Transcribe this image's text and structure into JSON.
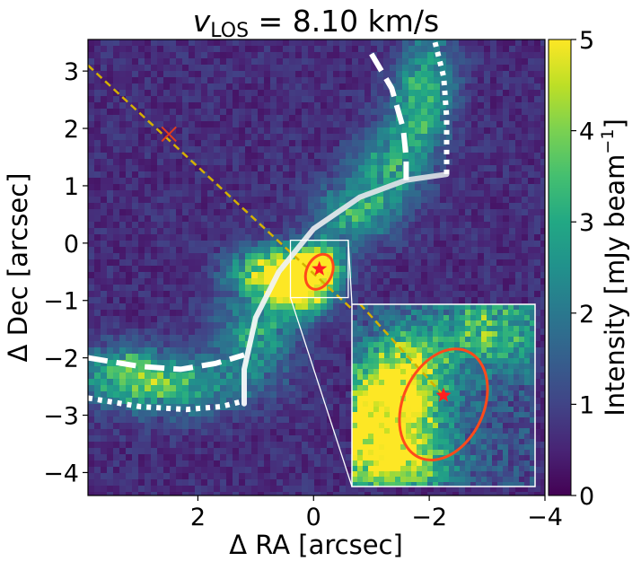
{
  "chart_data": {
    "type": "heatmap",
    "title": "v_LOS = 8.10 km/s",
    "title_parts": {
      "v": "v",
      "sub": "LOS",
      "rest": " = 8.10 km/s"
    },
    "xlabel": "Δ RA [arcsec]",
    "ylabel": "Δ Dec [arcsec]",
    "colorbar_label": "Intensity [mJy beam⁻¹]",
    "colorbar_label_parts": {
      "main": "Intensity [mJy beam",
      "sup": "−1",
      "close": "]"
    },
    "colormap": "viridis",
    "colormap_colors": [
      "#440154",
      "#3b528b",
      "#21918c",
      "#5ec962",
      "#fde725"
    ],
    "xlim": [
      3.9,
      -4.0
    ],
    "ylim": [
      -4.4,
      3.55
    ],
    "clim": [
      0,
      5
    ],
    "x_ticks": [
      2,
      0,
      -2,
      -4
    ],
    "x_tick_labels": [
      "2",
      "0",
      "−2",
      "−4"
    ],
    "y_ticks": [
      3,
      2,
      1,
      0,
      -1,
      -2,
      -3,
      -4
    ],
    "y_tick_labels": [
      "3",
      "2",
      "1",
      "0",
      "−1",
      "−2",
      "−3",
      "−4"
    ],
    "colorbar_ticks": [
      0,
      1,
      2,
      3,
      4,
      5
    ],
    "colorbar_tick_labels": [
      "0",
      "1",
      "2",
      "3",
      "4",
      "5"
    ],
    "emission_features": [
      {
        "x": 0.55,
        "y": -0.5,
        "value": 5.0,
        "sx": 0.55,
        "sy": 0.3
      },
      {
        "x": 0.2,
        "y": -0.8,
        "value": 4.5,
        "sx": 0.35,
        "sy": 0.3
      },
      {
        "x": -0.15,
        "y": -0.35,
        "value": 3.0,
        "sx": 0.25,
        "sy": 0.25
      },
      {
        "x": 1.0,
        "y": -1.6,
        "value": 2.2,
        "sx": 0.5,
        "sy": 0.5
      },
      {
        "x": 2.5,
        "y": -2.5,
        "value": 2.6,
        "sx": 0.9,
        "sy": 0.35
      },
      {
        "x": 3.3,
        "y": -2.2,
        "value": 2.2,
        "sx": 0.5,
        "sy": 0.3
      },
      {
        "x": -0.7,
        "y": 0.5,
        "value": 2.4,
        "sx": 0.5,
        "sy": 0.35
      },
      {
        "x": -1.3,
        "y": 1.3,
        "value": 2.2,
        "sx": 0.45,
        "sy": 0.45
      },
      {
        "x": -1.8,
        "y": 2.2,
        "value": 2.2,
        "sx": 0.35,
        "sy": 0.5
      },
      {
        "x": -2.0,
        "y": 3.0,
        "value": 2.0,
        "sx": 0.35,
        "sy": 0.5
      }
    ],
    "background_level": 0.7,
    "source_star": {
      "x": -0.1,
      "y": -0.45,
      "color": "#ff2020"
    },
    "red_contour_ellipse": {
      "cx": -0.1,
      "cy": -0.5,
      "rx": 0.22,
      "ry": 0.32,
      "angle_deg": 25,
      "color": "#ff4a1a"
    },
    "cross_marker": {
      "x": 2.5,
      "y": 1.9,
      "color": "#e03c1e"
    },
    "dashed_axis_line": {
      "color": "#d4b000",
      "points": [
        {
          "x": 3.9,
          "y": 3.1
        },
        {
          "x": -1.9,
          "y": -2.3
        }
      ]
    },
    "solid_arc": {
      "color": "#e8ecef",
      "points": [
        {
          "x": 1.2,
          "y": -2.8
        },
        {
          "x": 1.2,
          "y": -2.2
        },
        {
          "x": 1.0,
          "y": -1.3
        },
        {
          "x": 0.6,
          "y": -0.5
        },
        {
          "x": 0.0,
          "y": 0.25
        },
        {
          "x": -0.8,
          "y": 0.8
        },
        {
          "x": -1.6,
          "y": 1.1
        },
        {
          "x": -2.3,
          "y": 1.2
        }
      ]
    },
    "dashed_arc_lower": {
      "points": [
        {
          "x": 3.9,
          "y": -2.0
        },
        {
          "x": 3.0,
          "y": -2.15
        },
        {
          "x": 2.3,
          "y": -2.2
        },
        {
          "x": 1.7,
          "y": -2.1
        },
        {
          "x": 1.2,
          "y": -1.95
        }
      ]
    },
    "dotted_arc_lower": {
      "points": [
        {
          "x": 3.9,
          "y": -2.7
        },
        {
          "x": 3.0,
          "y": -2.85
        },
        {
          "x": 2.2,
          "y": -2.9
        },
        {
          "x": 1.6,
          "y": -2.85
        },
        {
          "x": 1.2,
          "y": -2.75
        }
      ]
    },
    "dashed_arc_upper": {
      "points": [
        {
          "x": -1.0,
          "y": 3.3
        },
        {
          "x": -1.35,
          "y": 2.7
        },
        {
          "x": -1.55,
          "y": 2.0
        },
        {
          "x": -1.6,
          "y": 1.5
        },
        {
          "x": -1.6,
          "y": 1.1
        }
      ]
    },
    "dotted_arc_upper": {
      "points": [
        {
          "x": -2.1,
          "y": 3.5
        },
        {
          "x": -2.25,
          "y": 2.9
        },
        {
          "x": -2.3,
          "y": 2.2
        },
        {
          "x": -2.3,
          "y": 1.6
        },
        {
          "x": -2.3,
          "y": 1.2
        }
      ]
    },
    "zoom_box": {
      "x": [
        0.4,
        -0.6
      ],
      "y": [
        0.05,
        -0.95
      ]
    },
    "inset_features": [
      {
        "x": 0.25,
        "y": -0.6,
        "value": 5.0,
        "sx": 0.22,
        "sy": 0.18
      },
      {
        "x": 0.1,
        "y": -0.3,
        "value": 3.2,
        "sx": 0.15,
        "sy": 0.15
      },
      {
        "x": -0.35,
        "y": -0.1,
        "value": 2.5,
        "sx": 0.2,
        "sy": 0.15
      },
      {
        "x": 0.15,
        "y": -0.85,
        "value": 2.6,
        "sx": 0.2,
        "sy": 0.1
      }
    ],
    "inset_background": 1.3
  }
}
